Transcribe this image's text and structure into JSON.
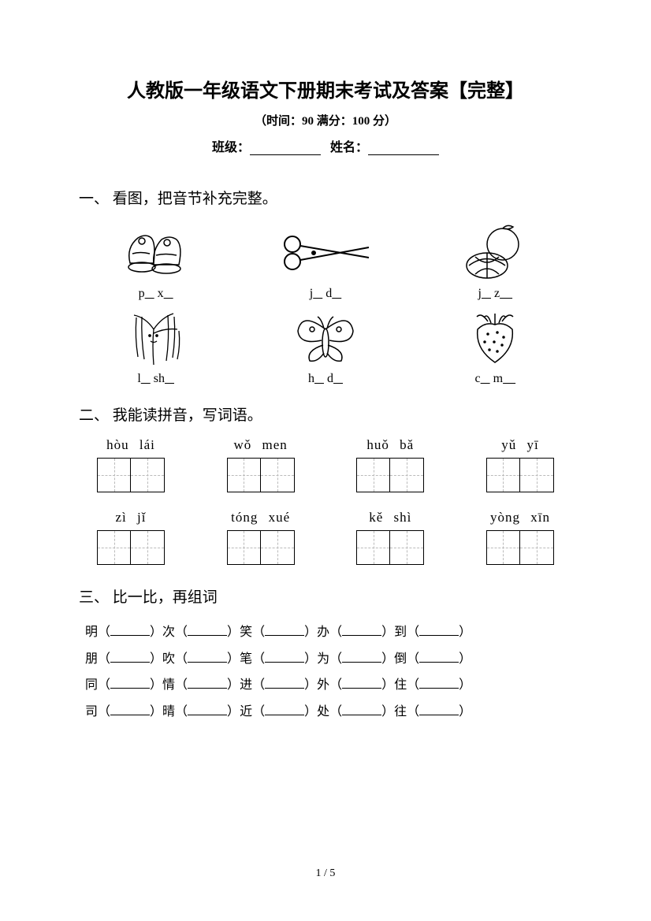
{
  "header": {
    "title": "人教版一年级语文下册期末考试及答案【完整】",
    "subtitle": "（时间：90   满分：100 分）",
    "class_label": "班级：",
    "name_label": "姓名："
  },
  "q1": {
    "title": "一、 看图，把音节补充完整。",
    "items": [
      {
        "p1": "p",
        "u1": "   ",
        "p2": " x",
        "u2": "   "
      },
      {
        "p1": "j",
        "u1": "   ",
        "p2": " d",
        "u2": "   "
      },
      {
        "p1": "j",
        "u1": "   ",
        "p2": " z",
        "u2": "    "
      },
      {
        "p1": "l",
        "u1": "   ",
        "p2": " sh",
        "u2": "   "
      },
      {
        "p1": "h",
        "u1": "   ",
        "p2": " d",
        "u2": "   "
      },
      {
        "p1": "c",
        "u1": "   ",
        "p2": " m",
        "u2": "    "
      }
    ]
  },
  "q2": {
    "title": "二、 我能读拼音，写词语。",
    "rows": [
      [
        "hòu  lái",
        "wǒ  men",
        "huǒ  bǎ",
        "yǔ  yī"
      ],
      [
        "zì  jǐ",
        "tóng  xué",
        "kě  shì",
        "yòng  xīn"
      ]
    ]
  },
  "q3": {
    "title": "三、 比一比，再组词",
    "rows": [
      [
        "明",
        "次",
        "笑",
        "办",
        "到"
      ],
      [
        "朋",
        "吹",
        "笔",
        "为",
        "倒"
      ],
      [
        "同",
        "情",
        "进",
        "外",
        "住"
      ],
      [
        "司",
        "晴",
        "近",
        "处",
        "往"
      ]
    ]
  },
  "footer": "1  /  5"
}
